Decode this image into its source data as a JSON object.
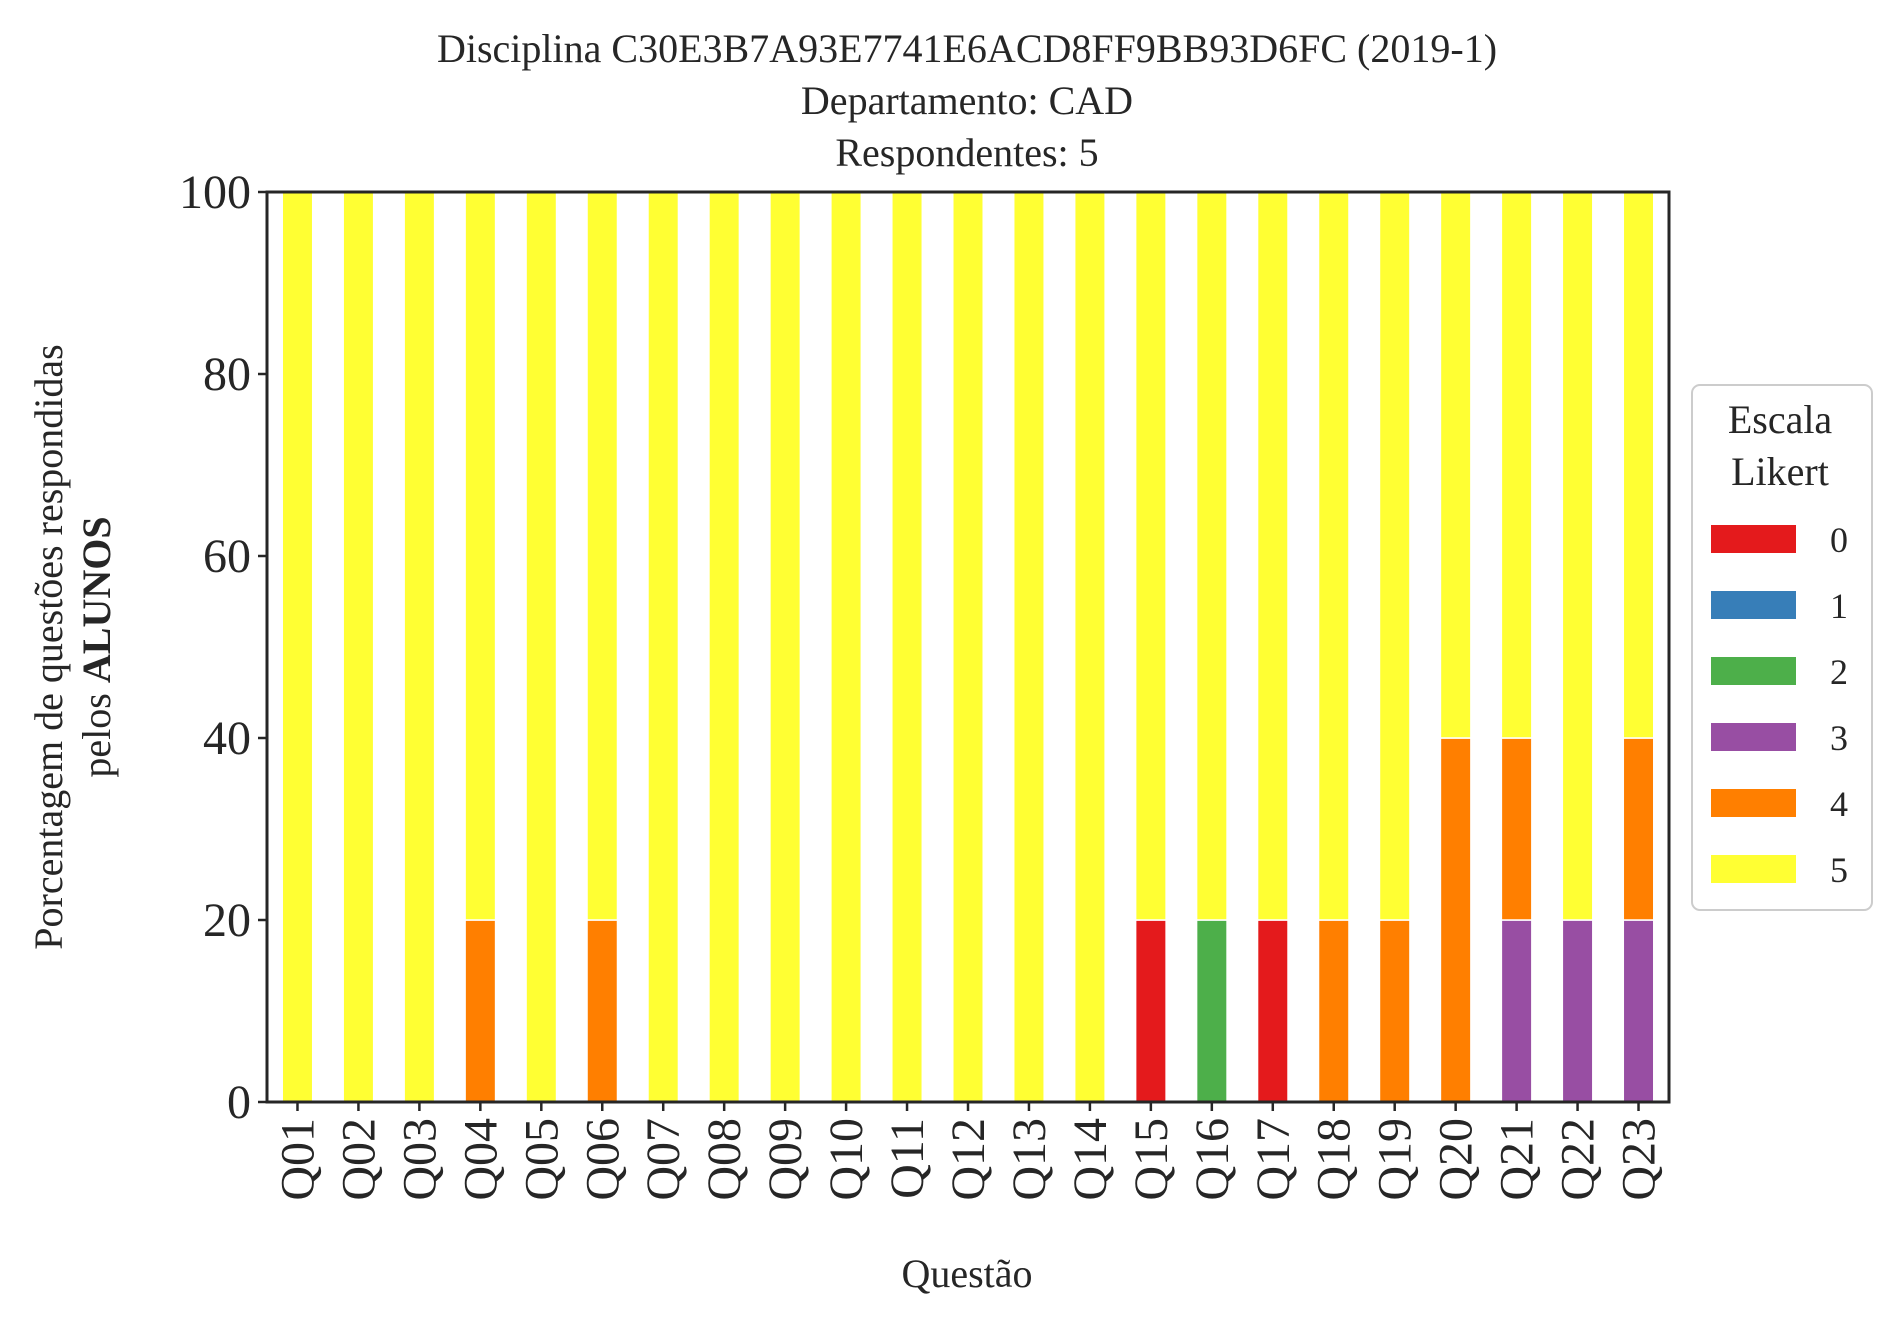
{
  "chart_data": {
    "type": "bar",
    "stacked": true,
    "title_lines": [
      "Disciplina C30E3B7A93E7741E6ACD8FF9BB93D6FC (2019-1)",
      "Departamento: CAD",
      "Respondentes: 5"
    ],
    "xlabel": "Questão",
    "ylabel_line1": "Porcentagem de questões respondidas",
    "ylabel_line2_prefix": "pelos ",
    "ylabel_line2_bold": "ALUNOS",
    "ylim": [
      0,
      100
    ],
    "yticks": [
      0,
      20,
      40,
      60,
      80,
      100
    ],
    "grid": false,
    "legend": {
      "title_lines": [
        "Escala",
        "Likert"
      ],
      "placement": "right"
    },
    "categories": [
      "Q01",
      "Q02",
      "Q03",
      "Q04",
      "Q05",
      "Q06",
      "Q07",
      "Q08",
      "Q09",
      "Q10",
      "Q11",
      "Q12",
      "Q13",
      "Q14",
      "Q15",
      "Q16",
      "Q17",
      "Q18",
      "Q19",
      "Q20",
      "Q21",
      "Q22",
      "Q23"
    ],
    "series": [
      {
        "name": "0",
        "color": "#e41a1c",
        "values": [
          0,
          0,
          0,
          0,
          0,
          0,
          0,
          0,
          0,
          0,
          0,
          0,
          0,
          0,
          20,
          0,
          20,
          0,
          0,
          0,
          0,
          0,
          0
        ]
      },
      {
        "name": "1",
        "color": "#377eb8",
        "values": [
          0,
          0,
          0,
          0,
          0,
          0,
          0,
          0,
          0,
          0,
          0,
          0,
          0,
          0,
          0,
          0,
          0,
          0,
          0,
          0,
          0,
          0,
          0
        ]
      },
      {
        "name": "2",
        "color": "#4daf4a",
        "values": [
          0,
          0,
          0,
          0,
          0,
          0,
          0,
          0,
          0,
          0,
          0,
          0,
          0,
          0,
          0,
          20,
          0,
          0,
          0,
          0,
          0,
          0,
          0
        ]
      },
      {
        "name": "3",
        "color": "#984ea3",
        "values": [
          0,
          0,
          0,
          0,
          0,
          0,
          0,
          0,
          0,
          0,
          0,
          0,
          0,
          0,
          0,
          0,
          0,
          0,
          0,
          0,
          20,
          20,
          20
        ]
      },
      {
        "name": "4",
        "color": "#ff7f00",
        "values": [
          0,
          0,
          0,
          20,
          0,
          20,
          0,
          0,
          0,
          0,
          0,
          0,
          0,
          0,
          0,
          0,
          0,
          20,
          20,
          40,
          20,
          0,
          20
        ]
      },
      {
        "name": "5",
        "color": "#ffff33",
        "values": [
          100,
          100,
          100,
          80,
          100,
          80,
          100,
          100,
          100,
          100,
          100,
          100,
          100,
          100,
          80,
          80,
          80,
          80,
          80,
          60,
          60,
          80,
          60
        ]
      }
    ]
  }
}
